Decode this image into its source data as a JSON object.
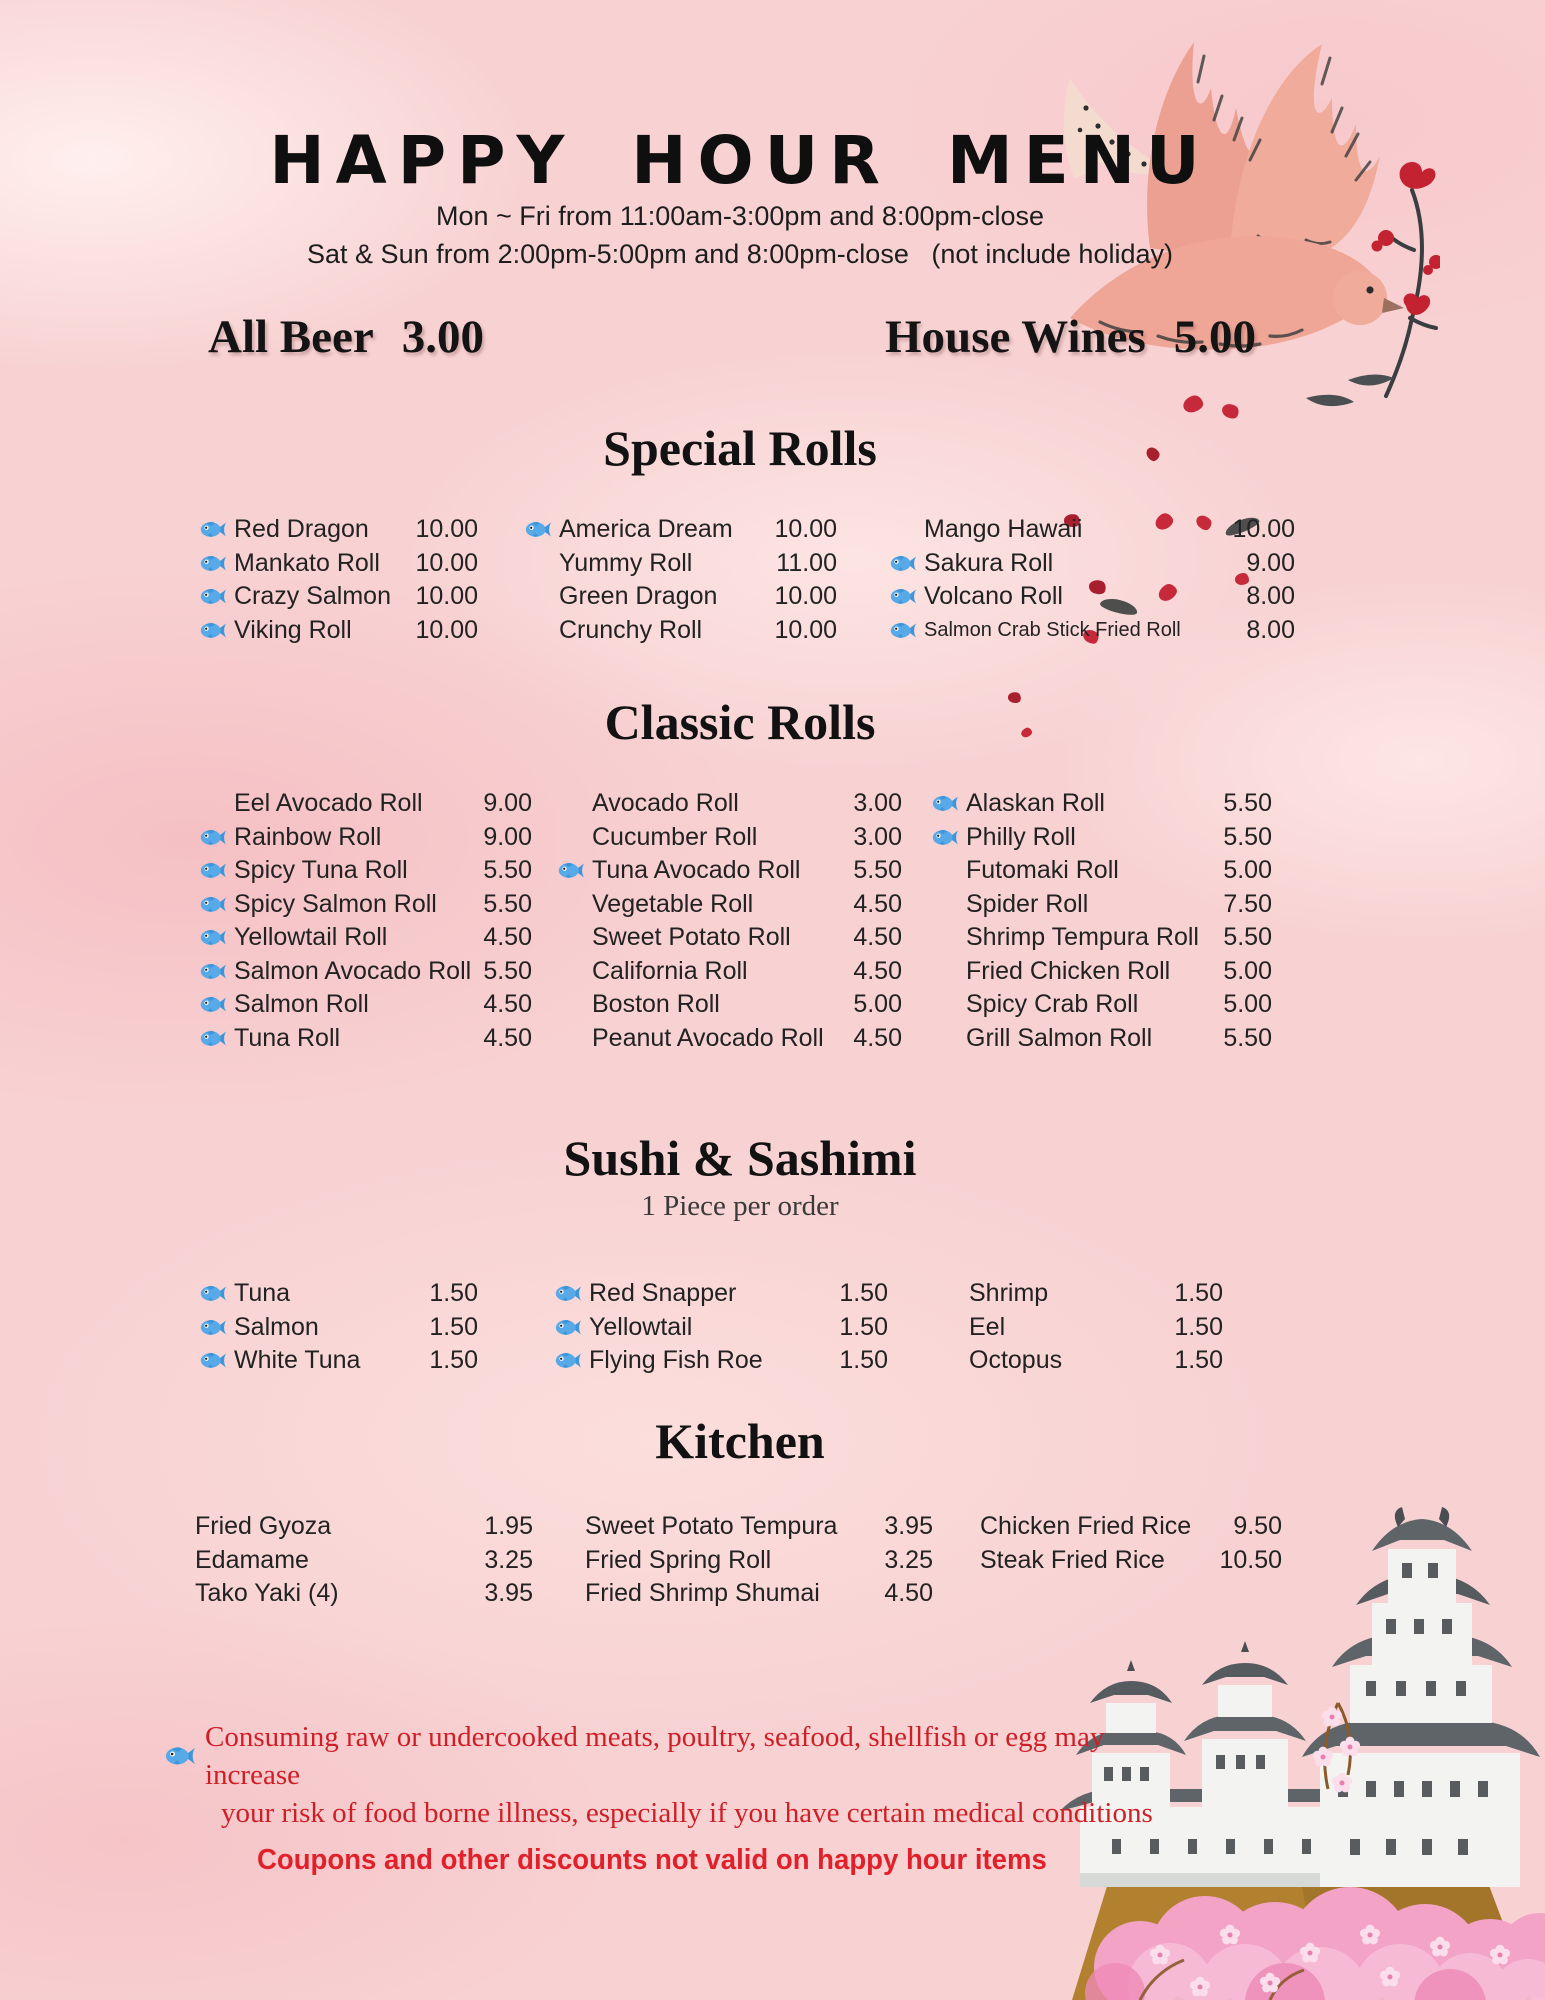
{
  "header": {
    "title": "HAPPY HOUR MENU",
    "hours_line1": "Mon ~ Fri from 11:00am-3:00pm and 8:00pm-close",
    "hours_line2": "Sat & Sun from 2:00pm-5:00pm and 8:00pm-close   (not include holiday)"
  },
  "drinks": [
    {
      "label": "All Beer",
      "price": "3.00"
    },
    {
      "label": "House Wines",
      "price": "5.00"
    }
  ],
  "sections": [
    {
      "title": "Special Rolls",
      "subtitle": "",
      "columns": [
        {
          "items": [
            {
              "fish": true,
              "name": "Red Dragon",
              "price": "10.00"
            },
            {
              "fish": true,
              "name": "Mankato Roll",
              "price": "10.00"
            },
            {
              "fish": true,
              "name": "Crazy Salmon",
              "price": "10.00"
            },
            {
              "fish": true,
              "name": "Viking Roll",
              "price": "10.00"
            }
          ]
        },
        {
          "items": [
            {
              "fish": true,
              "name": "America Dream",
              "price": "10.00"
            },
            {
              "fish": false,
              "name": "Yummy Roll",
              "price": "11.00"
            },
            {
              "fish": false,
              "name": "Green Dragon",
              "price": "10.00"
            },
            {
              "fish": false,
              "name": "Crunchy Roll",
              "price": "10.00"
            }
          ]
        },
        {
          "items": [
            {
              "fish": false,
              "name": "Mango Hawaii",
              "price": "10.00"
            },
            {
              "fish": true,
              "name": "Sakura Roll",
              "price": "9.00"
            },
            {
              "fish": true,
              "name": "Volcano Roll",
              "price": "8.00"
            },
            {
              "fish": true,
              "name": "Salmon Crab Stick Fried Roll",
              "price": "8.00"
            }
          ]
        }
      ]
    },
    {
      "title": "Classic Rolls",
      "subtitle": "",
      "columns": [
        {
          "items": [
            {
              "fish": false,
              "name": "Eel Avocado Roll",
              "price": "9.00"
            },
            {
              "fish": true,
              "name": "Rainbow Roll",
              "price": "9.00"
            },
            {
              "fish": true,
              "name": "Spicy Tuna Roll",
              "price": "5.50"
            },
            {
              "fish": true,
              "name": "Spicy Salmon Roll",
              "price": "5.50"
            },
            {
              "fish": true,
              "name": "Yellowtail Roll",
              "price": "4.50"
            },
            {
              "fish": true,
              "name": "Salmon Avocado Roll",
              "price": "5.50"
            },
            {
              "fish": true,
              "name": "Salmon Roll",
              "price": "4.50"
            },
            {
              "fish": true,
              "name": "Tuna Roll",
              "price": "4.50"
            }
          ]
        },
        {
          "items": [
            {
              "fish": false,
              "name": "Avocado Roll",
              "price": "3.00"
            },
            {
              "fish": false,
              "name": "Cucumber Roll",
              "price": "3.00"
            },
            {
              "fish": true,
              "name": "Tuna Avocado Roll",
              "price": "5.50"
            },
            {
              "fish": false,
              "name": "Vegetable Roll",
              "price": "4.50"
            },
            {
              "fish": false,
              "name": "Sweet Potato Roll",
              "price": "4.50"
            },
            {
              "fish": false,
              "name": "California Roll",
              "price": "4.50"
            },
            {
              "fish": false,
              "name": "Boston Roll",
              "price": "5.00"
            },
            {
              "fish": false,
              "name": "Peanut Avocado Roll",
              "price": "4.50"
            }
          ]
        },
        {
          "items": [
            {
              "fish": true,
              "name": "Alaskan Roll",
              "price": "5.50"
            },
            {
              "fish": true,
              "name": "Philly Roll",
              "price": "5.50"
            },
            {
              "fish": false,
              "name": "Futomaki Roll",
              "price": "5.00"
            },
            {
              "fish": false,
              "name": "Spider Roll",
              "price": "7.50"
            },
            {
              "fish": false,
              "name": "Shrimp Tempura Roll",
              "price": "5.50"
            },
            {
              "fish": false,
              "name": "Fried Chicken Roll",
              "price": "5.00"
            },
            {
              "fish": false,
              "name": "Spicy Crab Roll",
              "price": "5.00"
            },
            {
              "fish": false,
              "name": "Grill Salmon Roll",
              "price": "5.50"
            }
          ]
        }
      ]
    },
    {
      "title": "Sushi & Sashimi",
      "subtitle": "1 Piece per order",
      "columns": [
        {
          "items": [
            {
              "fish": true,
              "name": "Tuna",
              "price": "1.50"
            },
            {
              "fish": true,
              "name": "Salmon",
              "price": "1.50"
            },
            {
              "fish": true,
              "name": "White Tuna",
              "price": "1.50"
            }
          ]
        },
        {
          "items": [
            {
              "fish": true,
              "name": "Red Snapper",
              "price": "1.50"
            },
            {
              "fish": true,
              "name": "Yellowtail",
              "price": "1.50"
            },
            {
              "fish": true,
              "name": "Flying Fish Roe",
              "price": "1.50"
            }
          ]
        },
        {
          "items": [
            {
              "fish": false,
              "name": "Shrimp",
              "price": "1.50"
            },
            {
              "fish": false,
              "name": "Eel",
              "price": "1.50"
            },
            {
              "fish": false,
              "name": "Octopus",
              "price": "1.50"
            }
          ]
        }
      ]
    },
    {
      "title": "Kitchen",
      "subtitle": "",
      "columns": [
        {
          "items": [
            {
              "fish": false,
              "name": "Fried Gyoza",
              "price": "1.95"
            },
            {
              "fish": false,
              "name": "Edamame",
              "price": "3.25"
            },
            {
              "fish": false,
              "name": "Tako Yaki (4)",
              "price": "3.95"
            }
          ]
        },
        {
          "items": [
            {
              "fish": false,
              "name": "Sweet Potato Tempura",
              "price": "3.95"
            },
            {
              "fish": false,
              "name": "Fried Spring Roll",
              "price": "3.25"
            },
            {
              "fish": false,
              "name": "Fried Shrimp Shumai",
              "price": "4.50"
            }
          ]
        },
        {
          "items": [
            {
              "fish": false,
              "name": "Chicken Fried Rice",
              "price": "9.50"
            },
            {
              "fish": false,
              "name": "Steak Fried Rice",
              "price": "10.50"
            }
          ]
        }
      ]
    }
  ],
  "footer": {
    "disclaimer_line1": "Consuming raw or undercooked meats, poultry, seafood, shellfish or egg may increase",
    "disclaimer_line2": "your risk of food borne illness, especially if you have certain medical conditions",
    "coupon_note": "Coupons and other discounts not valid on happy hour items"
  },
  "icons": {
    "fish": "fish-icon"
  },
  "colors": {
    "background_pink": "#f8d2d3",
    "petal_red": "#c5293a",
    "disclaimer_red": "#ce1f27",
    "coupon_red": "#e0202a",
    "fish_blue": "#57a9e8",
    "text_dark": "#212121"
  },
  "decorations": [
    "bird-illustration",
    "flower-branch",
    "falling-petals",
    "feathers",
    "castle-illustration",
    "cherry-blossoms"
  ]
}
